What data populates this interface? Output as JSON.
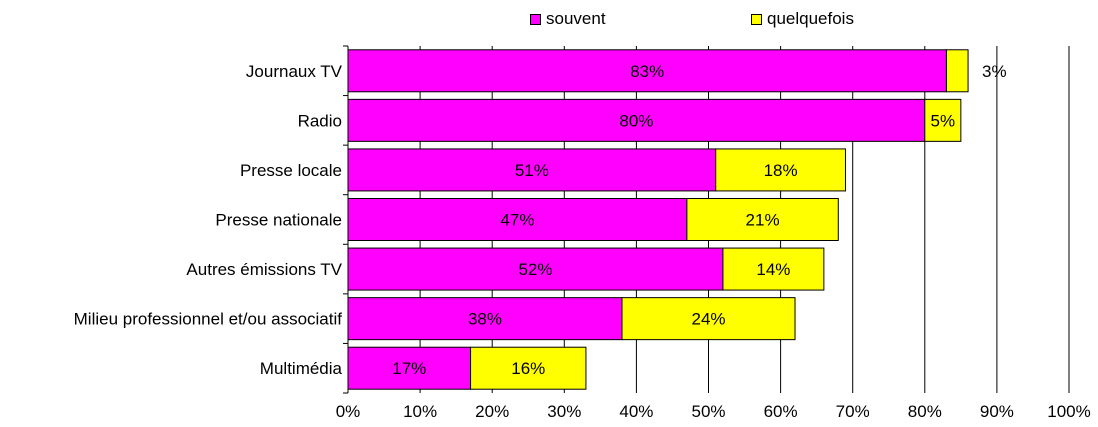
{
  "chart_data": {
    "type": "bar",
    "orientation": "horizontal",
    "stacked": true,
    "categories": [
      "Journaux TV",
      "Radio",
      "Presse locale",
      "Presse nationale",
      "Autres émissions TV",
      "Milieu professionnel et/ou associatif",
      "Multimédia"
    ],
    "series": [
      {
        "name": "souvent",
        "color": "#FF00FF",
        "values": [
          83,
          80,
          51,
          47,
          52,
          38,
          17
        ],
        "labels": [
          "83%",
          "80%",
          "51%",
          "47%",
          "52%",
          "38%",
          "17%"
        ]
      },
      {
        "name": "quelquefois",
        "color": "#FFFF00",
        "values": [
          3,
          5,
          18,
          21,
          14,
          24,
          16
        ],
        "labels": [
          "3%",
          "5%",
          "18%",
          "21%",
          "14%",
          "24%",
          "16%"
        ]
      }
    ],
    "xlim": [
      0,
      100
    ],
    "x_ticks": [
      "0%",
      "10%",
      "20%",
      "30%",
      "40%",
      "50%",
      "60%",
      "70%",
      "80%",
      "90%",
      "100%"
    ],
    "grid": "vertical",
    "legend": "top"
  }
}
